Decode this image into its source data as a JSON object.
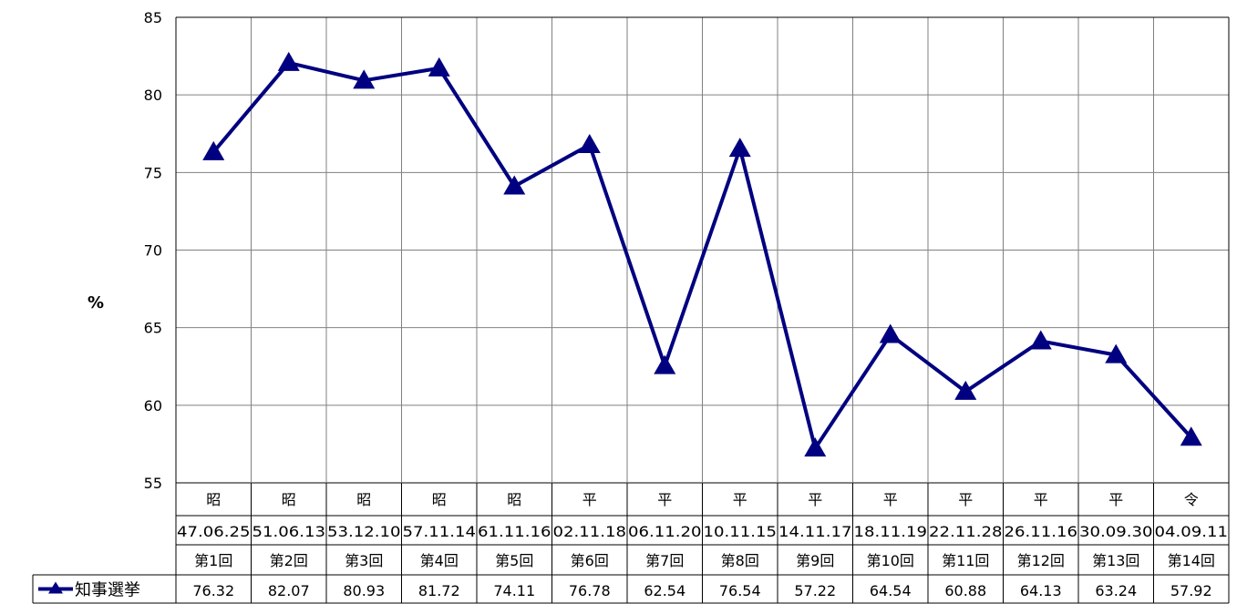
{
  "chart_data": {
    "type": "line",
    "ylabel": "%",
    "ylim": [
      55,
      85
    ],
    "yticks": [
      "55",
      "60",
      "65",
      "70",
      "75",
      "80",
      "85"
    ],
    "grid": true,
    "categories": [
      {
        "era": "昭",
        "date": "47.06.25",
        "round": "第1回"
      },
      {
        "era": "昭",
        "date": "51.06.13",
        "round": "第2回"
      },
      {
        "era": "昭",
        "date": "53.12.10",
        "round": "第3回"
      },
      {
        "era": "昭",
        "date": "57.11.14",
        "round": "第4回"
      },
      {
        "era": "昭",
        "date": "61.11.16",
        "round": "第5回"
      },
      {
        "era": "平",
        "date": "02.11.18",
        "round": "第6回"
      },
      {
        "era": "平",
        "date": "06.11.20",
        "round": "第7回"
      },
      {
        "era": "平",
        "date": "10.11.15",
        "round": "第8回"
      },
      {
        "era": "平",
        "date": "14.11.17",
        "round": "第9回"
      },
      {
        "era": "平",
        "date": "18.11.19",
        "round": "第10回"
      },
      {
        "era": "平",
        "date": "22.11.28",
        "round": "第11回"
      },
      {
        "era": "平",
        "date": "26.11.16",
        "round": "第12回"
      },
      {
        "era": "平",
        "date": "30.09.30",
        "round": "第13回"
      },
      {
        "era": "令",
        "date": "04.09.11",
        "round": "第14回"
      }
    ],
    "series": [
      {
        "name": "知事選挙",
        "color": "#000080",
        "marker": "triangle",
        "values": [
          76.32,
          82.07,
          80.93,
          81.72,
          74.11,
          76.78,
          62.54,
          76.54,
          57.22,
          64.54,
          60.88,
          64.13,
          63.24,
          57.92
        ],
        "value_labels": [
          "76.32",
          "82.07",
          "80.93",
          "81.72",
          "74.11",
          "76.78",
          "62.54",
          "76.54",
          "57.22",
          "64.54",
          "60.88",
          "64.13",
          "63.24",
          "57.92"
        ]
      }
    ]
  }
}
